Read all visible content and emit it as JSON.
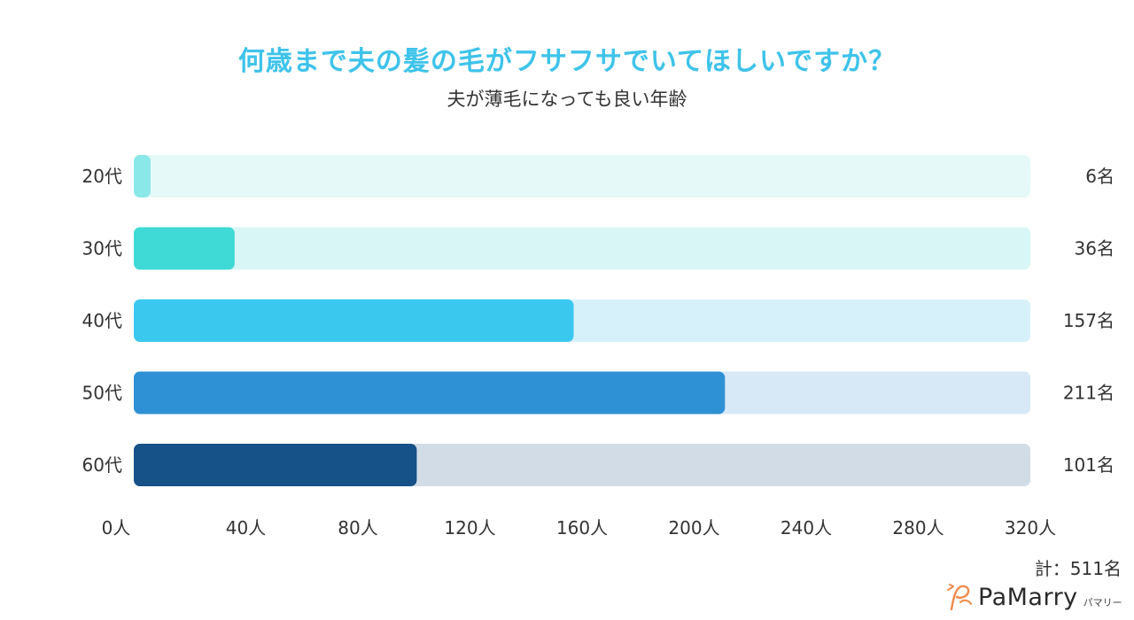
{
  "chart_data": {
    "type": "bar",
    "orientation": "horizontal",
    "title": "何歳まで夫の髪の毛がフサフサでいてほしいですか？",
    "subtitle": "夫が薄毛になっても良い年齢",
    "categories": [
      "20代",
      "30代",
      "40代",
      "50代",
      "60代"
    ],
    "values": [
      6,
      36,
      157,
      211,
      101
    ],
    "value_labels": [
      "6名",
      "36名",
      "157名",
      "211名",
      "101名"
    ],
    "x_ticks": [
      "0人",
      "40人",
      "80人",
      "120人",
      "160人",
      "200人",
      "240人",
      "280人",
      "320人"
    ],
    "xlim": [
      0,
      320
    ],
    "bar_colors": [
      "#8ae8e8",
      "#3fdad6",
      "#3bc8ef",
      "#2e91d5",
      "#165187"
    ],
    "track_colors": [
      "#e5f9f8",
      "#d8f6f5",
      "#d6f1f9",
      "#d7e8f6",
      "#d1dce7"
    ]
  },
  "total": "計：511名",
  "logo": {
    "name": "PaMarry",
    "sub": "パマリー",
    "accent": "#f08a4b"
  }
}
